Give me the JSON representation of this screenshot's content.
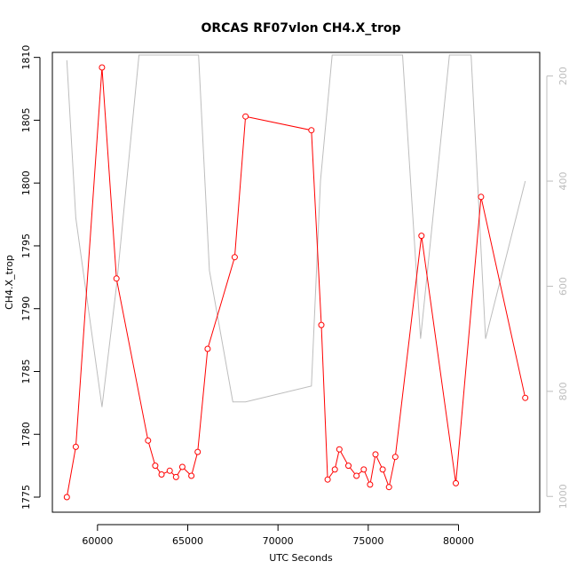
{
  "chart_data": {
    "type": "line",
    "title": "ORCAS RF07vlon CH4.X_trop",
    "xlabel": "UTC Seconds",
    "ylabel": "CH4.X_trop",
    "xlim": [
      57500,
      84500
    ],
    "ylim": [
      1773.8,
      1810.4
    ],
    "xticks": [
      60000,
      65000,
      70000,
      75000,
      80000
    ],
    "yticks": [
      1775,
      1780,
      1785,
      1790,
      1795,
      1800,
      1805,
      1810
    ],
    "y2lim": [
      1030,
      155
    ],
    "y2ticks": [
      200,
      400,
      600,
      800,
      1000
    ],
    "grid": false,
    "legend": "none",
    "series": [
      {
        "color": "#ff0000",
        "marker": "open-circle",
        "x": [
          58300,
          58800,
          60250,
          61050,
          62800,
          63200,
          63550,
          64000,
          64350,
          64700,
          65200,
          65550,
          66100,
          67600,
          68200,
          71850,
          72400,
          72750,
          73150,
          73400,
          73900,
          74350,
          74750,
          75100,
          75400,
          75800,
          76150,
          76500,
          77950,
          79850,
          81250,
          83700
        ],
        "y": [
          1775.0,
          1779.0,
          1809.2,
          1792.4,
          1779.5,
          1777.5,
          1776.8,
          1777.1,
          1776.6,
          1777.4,
          1776.7,
          1778.6,
          1786.8,
          1794.1,
          1805.3,
          1804.2,
          1788.7,
          1776.4,
          1777.2,
          1778.8,
          1777.5,
          1776.7,
          1777.2,
          1776.0,
          1778.4,
          1777.2,
          1775.8,
          1778.2,
          1795.8,
          1776.1,
          1798.9,
          1782.9
        ]
      },
      {
        "color": "#bdbdbd",
        "axis": "right",
        "x": [
          58300,
          58800,
          60250,
          61050,
          62300,
          63500,
          65600,
          66200,
          67500,
          68200,
          71850,
          72350,
          73000,
          75500,
          76900,
          77900,
          79500,
          80700,
          81500,
          83700
        ],
        "y": [
          170,
          470,
          830,
          600,
          160,
          160,
          160,
          570,
          820,
          820,
          790,
          400,
          160,
          160,
          160,
          700,
          160,
          160,
          700,
          400
        ]
      }
    ]
  }
}
